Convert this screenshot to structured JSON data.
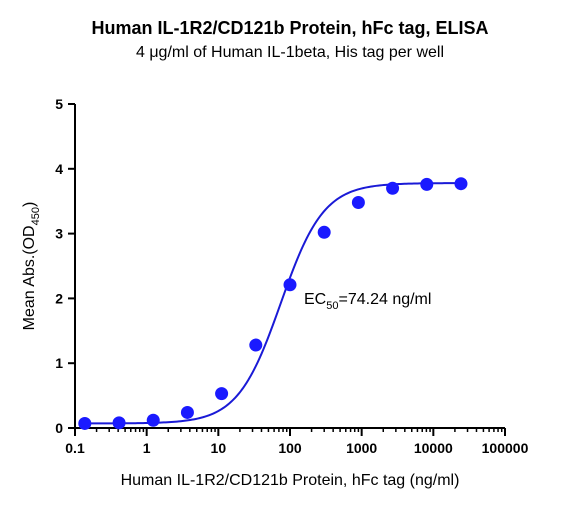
{
  "chart_data": {
    "type": "scatter",
    "title": "Human IL-1R2/CD121b Protein, hFc tag, ELISA",
    "subtitle": "4 μg/ml of Human IL-1beta, His tag per well",
    "xlabel": "Human IL-1R2/CD121b Protein, hFc tag (ng/ml)",
    "ylabel": {
      "prefix": "Mean Abs.(OD",
      "subscript": "450",
      "suffix": ")"
    },
    "xscale": "log",
    "xlim": [
      0.1,
      100000
    ],
    "ylim": [
      0,
      5
    ],
    "xticks": [
      "0.1",
      "1",
      "10",
      "100",
      "1000",
      "10000",
      "100000"
    ],
    "yticks": [
      "0",
      "1",
      "2",
      "3",
      "4",
      "5"
    ],
    "grid": false,
    "series": [
      {
        "x": [
          0.137,
          0.412,
          1.235,
          3.704,
          11.11,
          33.33,
          100,
          300,
          900,
          2700,
          8100,
          24300
        ],
        "y": [
          0.07,
          0.08,
          0.12,
          0.24,
          0.53,
          1.28,
          2.21,
          3.02,
          3.48,
          3.7,
          3.76,
          3.77
        ],
        "color": "#1a1aff",
        "fit": "4PL"
      }
    ],
    "fit_params": {
      "bottom": 0.07,
      "top": 3.78,
      "ec50": 74.24,
      "hill": 1.45
    },
    "annotation": {
      "prefix": "EC",
      "subscript": "50",
      "suffix": "=74.24 ng/ml"
    },
    "colors": {
      "marker": "#1a1aff",
      "curve": "#1a1ad6",
      "axis": "#000000"
    }
  }
}
